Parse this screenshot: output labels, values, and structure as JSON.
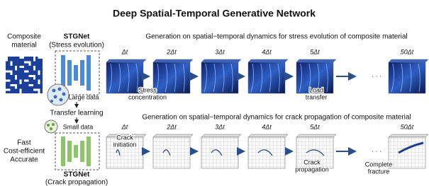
{
  "title": "Deep Spatial-Temporal Generative Network",
  "left": {
    "input_label": [
      "Composite",
      "material"
    ],
    "model_top": {
      "name": "STGNet",
      "task": "(Stress evolution)"
    },
    "large_data": "Large data",
    "transfer": "Transfer learning",
    "small_data": "Small data",
    "benefits": [
      "Fast",
      "Cost-efficient",
      "Accurate"
    ],
    "model_bottom": {
      "name": "STGNet",
      "task": "(Crack propagation)"
    }
  },
  "rows": [
    {
      "heading": "Generation on spatial−temporal dynamics for stress evolution of composite material",
      "steps": [
        "Δt",
        "2Δt",
        "3Δt",
        "4Δt",
        "5Δt",
        "· · ·",
        "50Δt"
      ],
      "annotations": [
        [
          "Stress",
          "concentration"
        ],
        [
          "Load",
          "transfer"
        ]
      ]
    },
    {
      "heading": "Generation on spatial−temporal dynamics for crack propagation of composite material",
      "steps": [
        "Δt",
        "2Δt",
        "3Δt",
        "4Δt",
        "5Δt",
        "· · ·",
        "50Δt"
      ],
      "annotations": [
        [
          "Crack",
          "initiation"
        ],
        [
          "Crack",
          "propagation"
        ],
        [
          "Complete",
          "fracture"
        ]
      ]
    }
  ]
}
